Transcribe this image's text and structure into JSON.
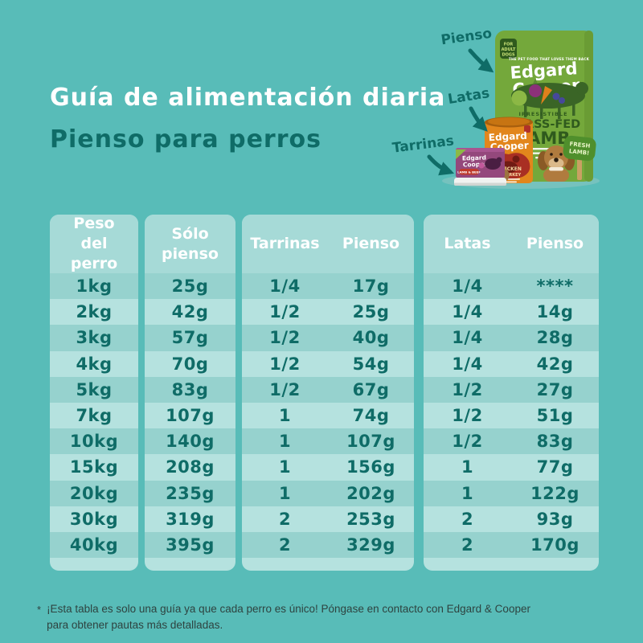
{
  "colors": {
    "background": "#58bcb8",
    "ink": "#0f6c67",
    "white": "#ffffff",
    "panel": "#b5e2df",
    "panelHeader": "#a6dad7",
    "rowDark": "#96d2ce",
    "footnote": "#2e4340",
    "bagGreen": "#74a83b",
    "bagDarkGreen": "#2f5a1d",
    "canOrange": "#e2861c",
    "splashRed": "#a92f23",
    "trayPurple": "#94487c",
    "dogBrown": "#b07b3e"
  },
  "chart_data": {
    "type": "table",
    "title": "Guía de alimentación diaria",
    "subtitle": "Pienso para perros",
    "headers": {
      "peso": "Peso del perro",
      "solo": "Sólo pienso",
      "tarrinas": "Tarrinas",
      "tarrinas_pienso": "Pienso",
      "latas": "Latas",
      "latas_pienso": "Pienso"
    },
    "rows": [
      {
        "peso": "1kg",
        "solo": "25g",
        "tarrinas": "1/4",
        "tarrinas_pienso": "17g",
        "latas": "1/4",
        "latas_pienso": "****"
      },
      {
        "peso": "2kg",
        "solo": "42g",
        "tarrinas": "1/2",
        "tarrinas_pienso": "25g",
        "latas": "1/4",
        "latas_pienso": "14g"
      },
      {
        "peso": "3kg",
        "solo": "57g",
        "tarrinas": "1/2",
        "tarrinas_pienso": "40g",
        "latas": "1/4",
        "latas_pienso": "28g"
      },
      {
        "peso": "4kg",
        "solo": "70g",
        "tarrinas": "1/2",
        "tarrinas_pienso": "54g",
        "latas": "1/4",
        "latas_pienso": "42g"
      },
      {
        "peso": "5kg",
        "solo": "83g",
        "tarrinas": "1/2",
        "tarrinas_pienso": "67g",
        "latas": "1/2",
        "latas_pienso": "27g"
      },
      {
        "peso": "7kg",
        "solo": "107g",
        "tarrinas": "1",
        "tarrinas_pienso": "74g",
        "latas": "1/2",
        "latas_pienso": "51g"
      },
      {
        "peso": "10kg",
        "solo": "140g",
        "tarrinas": "1",
        "tarrinas_pienso": "107g",
        "latas": "1/2",
        "latas_pienso": "83g"
      },
      {
        "peso": "15kg",
        "solo": "208g",
        "tarrinas": "1",
        "tarrinas_pienso": "156g",
        "latas": "1",
        "latas_pienso": "77g"
      },
      {
        "peso": "20kg",
        "solo": "235g",
        "tarrinas": "1",
        "tarrinas_pienso": "202g",
        "latas": "1",
        "latas_pienso": "122g"
      },
      {
        "peso": "30kg",
        "solo": "319g",
        "tarrinas": "2",
        "tarrinas_pienso": "253g",
        "latas": "2",
        "latas_pienso": "93g"
      },
      {
        "peso": "40kg",
        "solo": "395g",
        "tarrinas": "2",
        "tarrinas_pienso": "329g",
        "latas": "2",
        "latas_pienso": "170g"
      }
    ]
  },
  "promo": {
    "labels": {
      "pienso": "Pienso",
      "latas": "Latas",
      "tarrinas": "Tarrinas"
    },
    "bag": {
      "badge_line1": "FOR",
      "badge_line2": "ADULT",
      "badge_line3": "DOGS",
      "tagline": "THE PET FOOD THAT LOVES THEM BACK",
      "brand_line1": "Edgard",
      "brand_line2": "Cooper",
      "claim": "IRRESISTIBLE",
      "variety_line1": "GRASS-FED",
      "variety_line2": "LAMB",
      "sign_line1": "FRESH",
      "sign_line2": "LAMB!"
    },
    "can": {
      "brand_line1": "Edgard",
      "brand_line2": "Cooper",
      "variety_line1": "CHICKEN",
      "variety_line2": "& TURKEY"
    },
    "tray": {
      "brand_line1": "Edgard",
      "brand_line2": "Cooper",
      "variety": "LAMB & BEEF"
    }
  },
  "footnote": {
    "mark": "*",
    "text": "¡Esta tabla es solo una guía ya que cada perro es único! Póngase en contacto con Edgard & Cooper para obtener pautas más detalladas."
  }
}
